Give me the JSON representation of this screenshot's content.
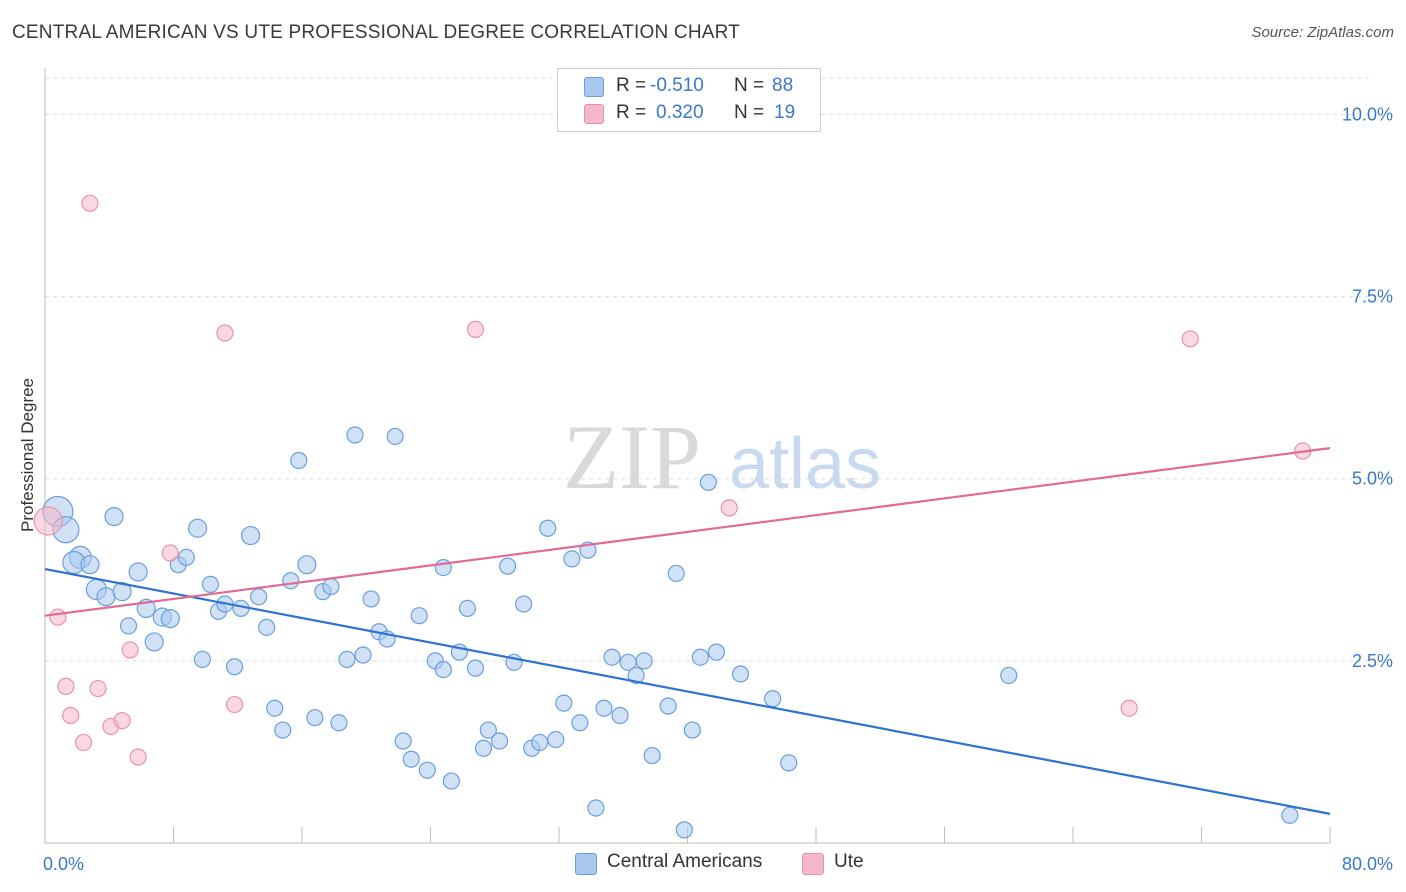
{
  "title": "CENTRAL AMERICAN VS UTE PROFESSIONAL DEGREE CORRELATION CHART",
  "source": "Source: ZipAtlas.com",
  "watermark": {
    "zip": "ZIP",
    "atlas": "atlas"
  },
  "legend": {
    "rows": [
      {
        "r_label": "R =",
        "r_value": "-0.510",
        "n_label": "N =",
        "n_value": "88",
        "color": "#a9c8ee"
      },
      {
        "r_label": "R =",
        "r_value": "0.320",
        "n_label": "N =",
        "n_value": "19",
        "color": "#f5b8ca"
      }
    ]
  },
  "chart_data": {
    "type": "scatter",
    "title": "CENTRAL AMERICAN VS UTE PROFESSIONAL DEGREE CORRELATION CHART",
    "xlabel": "",
    "ylabel": "Professional Degree",
    "xlim": [
      0,
      80
    ],
    "ylim": [
      0,
      10.5
    ],
    "x_tick_labels": [
      "0.0%",
      "80.0%"
    ],
    "y_ticks": [
      2.5,
      5.0,
      7.5,
      10.0
    ],
    "y_tick_labels": [
      "2.5%",
      "5.0%",
      "7.5%",
      "10.0%"
    ],
    "grid": true,
    "legend_position": "top-center",
    "series": [
      {
        "name": "Central Americans",
        "color": "#6a9fdc",
        "fill": "#a9c8ee",
        "trend": {
          "x": [
            0,
            80
          ],
          "y": [
            3.76,
            0.4
          ],
          "color": "#2f72d0"
        },
        "points": [
          [
            0.8,
            4.55,
            15
          ],
          [
            1.3,
            4.3,
            13
          ],
          [
            2.2,
            3.92,
            11
          ],
          [
            1.8,
            3.85,
            11
          ],
          [
            2.8,
            3.82,
            9
          ],
          [
            3.2,
            3.48,
            10
          ],
          [
            4.3,
            4.48,
            9
          ],
          [
            3.8,
            3.38,
            9
          ],
          [
            4.8,
            3.45,
            9
          ],
          [
            5.2,
            2.98,
            8
          ],
          [
            5.8,
            3.72,
            9
          ],
          [
            6.3,
            3.22,
            9
          ],
          [
            6.8,
            2.76,
            9
          ],
          [
            7.3,
            3.1,
            9
          ],
          [
            7.8,
            3.08,
            9
          ],
          [
            8.3,
            3.82,
            8
          ],
          [
            8.8,
            3.92,
            8
          ],
          [
            9.5,
            4.32,
            9
          ],
          [
            9.8,
            2.52,
            8
          ],
          [
            10.3,
            3.55,
            8
          ],
          [
            10.8,
            3.18,
            8
          ],
          [
            11.2,
            3.28,
            8
          ],
          [
            11.8,
            2.42,
            8
          ],
          [
            12.2,
            3.22,
            8
          ],
          [
            12.8,
            4.22,
            9
          ],
          [
            13.3,
            3.38,
            8
          ],
          [
            13.8,
            2.96,
            8
          ],
          [
            14.3,
            1.85,
            8
          ],
          [
            14.8,
            1.55,
            8
          ],
          [
            15.3,
            3.6,
            8
          ],
          [
            15.8,
            5.25,
            8
          ],
          [
            16.3,
            3.82,
            9
          ],
          [
            16.8,
            1.72,
            8
          ],
          [
            17.3,
            3.45,
            8
          ],
          [
            17.8,
            3.52,
            8
          ],
          [
            18.3,
            1.65,
            8
          ],
          [
            18.8,
            2.52,
            8
          ],
          [
            19.3,
            5.6,
            8
          ],
          [
            19.8,
            2.58,
            8
          ],
          [
            20.3,
            3.35,
            8
          ],
          [
            20.8,
            2.9,
            8
          ],
          [
            21.3,
            2.8,
            8
          ],
          [
            21.8,
            5.58,
            8
          ],
          [
            22.3,
            1.4,
            8
          ],
          [
            22.8,
            1.15,
            8
          ],
          [
            23.3,
            3.12,
            8
          ],
          [
            23.8,
            1.0,
            8
          ],
          [
            24.3,
            2.5,
            8
          ],
          [
            24.8,
            3.78,
            8
          ],
          [
            25.3,
            0.85,
            8
          ],
          [
            25.8,
            2.62,
            8
          ],
          [
            26.3,
            3.22,
            8
          ],
          [
            26.8,
            2.4,
            8
          ],
          [
            27.3,
            1.3,
            8
          ],
          [
            27.6,
            1.55,
            8
          ],
          [
            28.3,
            1.4,
            8
          ],
          [
            28.8,
            3.8,
            8
          ],
          [
            29.2,
            2.48,
            8
          ],
          [
            29.8,
            3.28,
            8
          ],
          [
            30.3,
            1.3,
            8
          ],
          [
            30.8,
            1.38,
            8
          ],
          [
            31.3,
            4.32,
            8
          ],
          [
            31.8,
            1.42,
            8
          ],
          [
            32.3,
            1.92,
            8
          ],
          [
            32.8,
            3.9,
            8
          ],
          [
            33.3,
            1.65,
            8
          ],
          [
            33.8,
            4.02,
            8
          ],
          [
            34.3,
            0.48,
            8
          ],
          [
            34.8,
            1.85,
            8
          ],
          [
            35.3,
            2.55,
            8
          ],
          [
            35.8,
            1.75,
            8
          ],
          [
            36.3,
            2.48,
            8
          ],
          [
            36.8,
            2.3,
            8
          ],
          [
            37.3,
            2.5,
            8
          ],
          [
            37.8,
            1.2,
            8
          ],
          [
            38.8,
            1.88,
            8
          ],
          [
            39.3,
            3.7,
            8
          ],
          [
            39.8,
            0.18,
            8
          ],
          [
            40.3,
            1.55,
            8
          ],
          [
            40.8,
            2.55,
            8
          ],
          [
            41.3,
            4.95,
            8
          ],
          [
            41.8,
            2.62,
            8
          ],
          [
            43.3,
            2.32,
            8
          ],
          [
            45.3,
            1.98,
            8
          ],
          [
            46.3,
            1.1,
            8
          ],
          [
            60.0,
            2.3,
            8
          ],
          [
            77.5,
            0.38,
            8
          ],
          [
            24.8,
            2.38,
            8
          ]
        ]
      },
      {
        "name": "Ute",
        "color": "#e891ad",
        "fill": "#f5b8ca",
        "trend": {
          "x": [
            0,
            80
          ],
          "y": [
            3.12,
            5.42
          ],
          "color": "#e06a95"
        },
        "points": [
          [
            0.2,
            4.42,
            14
          ],
          [
            0.8,
            3.1,
            8
          ],
          [
            1.3,
            2.15,
            8
          ],
          [
            1.6,
            1.75,
            8
          ],
          [
            2.4,
            1.38,
            8
          ],
          [
            2.8,
            8.78,
            8
          ],
          [
            3.3,
            2.12,
            8
          ],
          [
            4.1,
            1.6,
            8
          ],
          [
            4.8,
            1.68,
            8
          ],
          [
            5.3,
            2.65,
            8
          ],
          [
            5.8,
            1.18,
            8
          ],
          [
            7.8,
            3.98,
            8
          ],
          [
            11.2,
            7.0,
            8
          ],
          [
            11.8,
            1.9,
            8
          ],
          [
            26.8,
            7.05,
            8
          ],
          [
            42.6,
            4.6,
            8
          ],
          [
            67.5,
            1.85,
            8
          ],
          [
            71.3,
            6.92,
            8
          ],
          [
            78.3,
            5.38,
            8
          ]
        ]
      }
    ]
  }
}
